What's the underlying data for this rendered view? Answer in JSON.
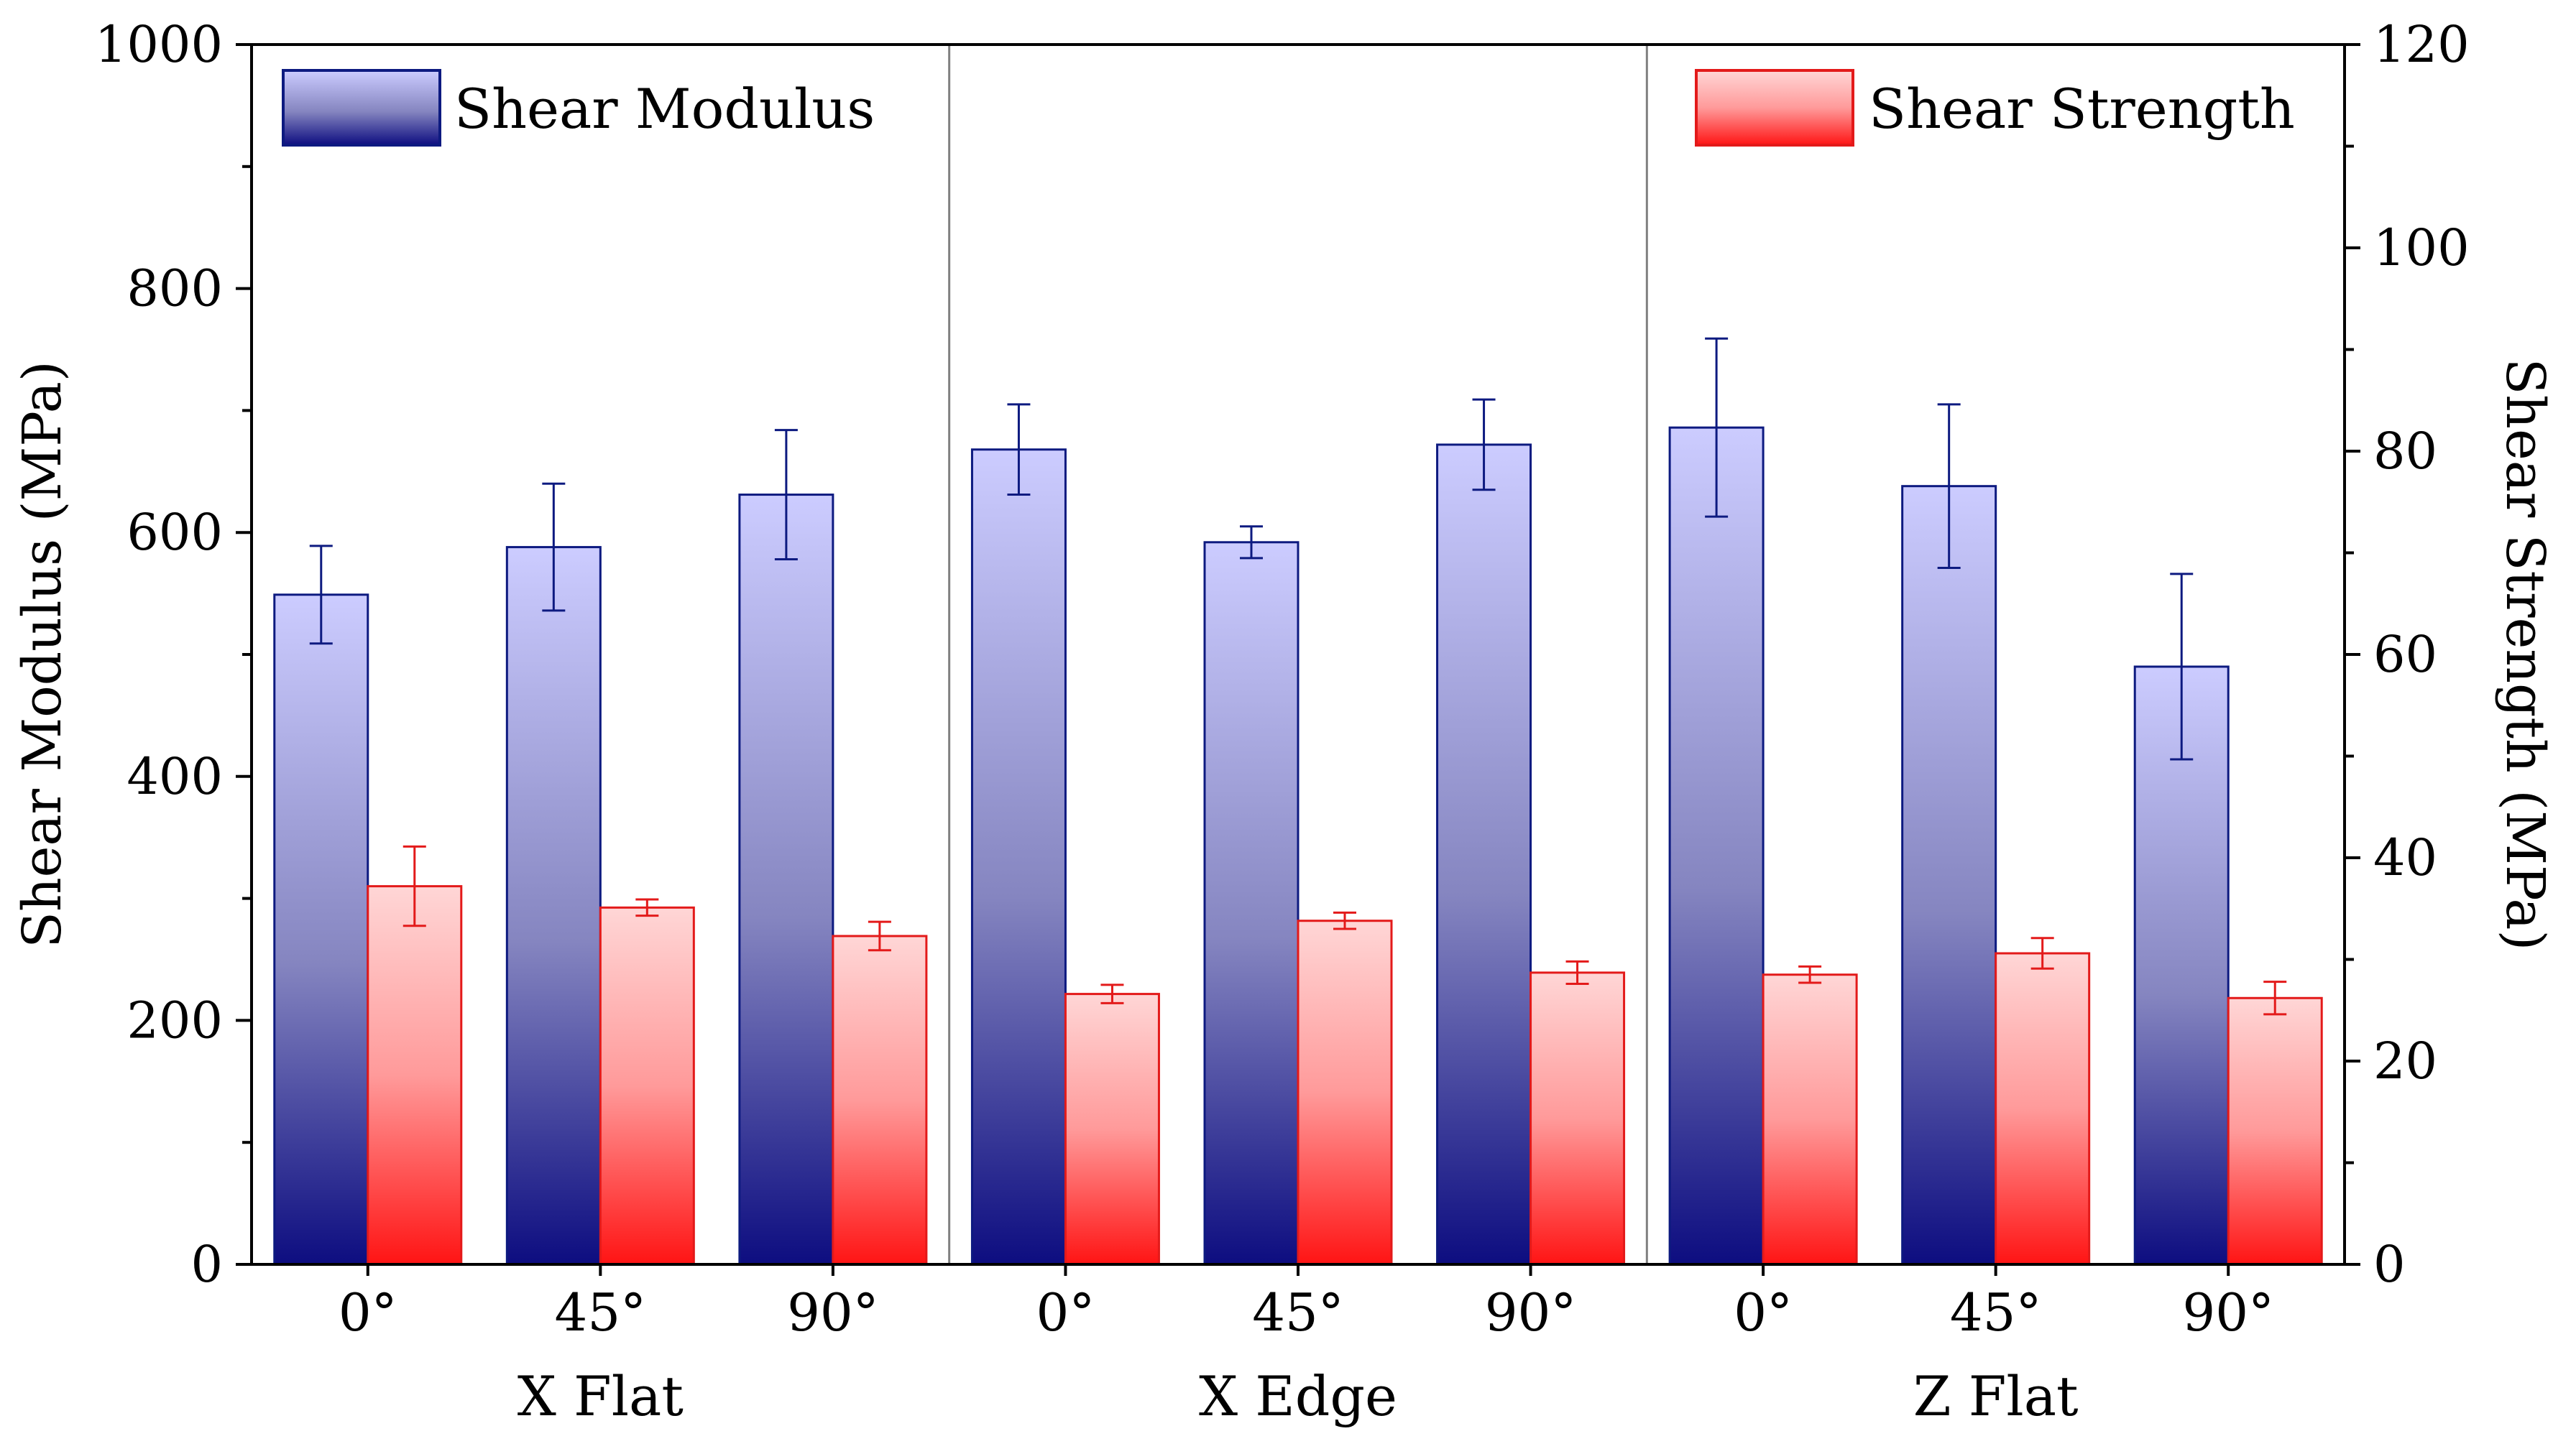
{
  "chart_data": {
    "type": "bar",
    "groups": [
      "X Flat",
      "X Edge",
      "Z Flat"
    ],
    "categories": [
      "0°",
      "45°",
      "90°",
      "0°",
      "45°",
      "90°",
      "0°",
      "45°",
      "90°"
    ],
    "ylabel_left": "Shear Modulus (MPa)",
    "ylabel_right": "Shear Strength (MPa)",
    "ylim_left": [
      0,
      1000
    ],
    "ylim_right": [
      0,
      120
    ],
    "yticks_left": [
      "0",
      "200",
      "400",
      "600",
      "800",
      "1000"
    ],
    "yticks_right": [
      "0",
      "20",
      "40",
      "60",
      "80",
      "100",
      "120"
    ],
    "series": [
      {
        "name": "Shear Modulus",
        "axis": "left",
        "values": [
          549,
          588,
          631,
          668,
          592,
          672,
          686,
          638,
          490
        ],
        "errors": [
          40,
          52,
          53,
          37,
          13,
          37,
          73,
          67,
          76
        ]
      },
      {
        "name": "Shear Strength",
        "axis": "right",
        "values": [
          37.2,
          35.1,
          32.3,
          26.6,
          33.8,
          28.7,
          28.5,
          30.6,
          26.2
        ],
        "errors": [
          3.9,
          0.8,
          1.4,
          0.9,
          0.8,
          1.1,
          0.8,
          1.5,
          1.6
        ]
      }
    ],
    "legend": [
      "Shear Modulus",
      "Shear Strength"
    ],
    "colors": {
      "modulus_top": "#ccccff",
      "modulus_mid": "#8585c0",
      "modulus_bottom": "#0d0d80",
      "modulus_edge": "#0d1a80",
      "strength_top": "#ffd6d6",
      "strength_mid": "#ff9a9a",
      "strength_bottom": "#ff1414",
      "strength_edge": "#e31a1a",
      "separator": "#808080"
    }
  }
}
